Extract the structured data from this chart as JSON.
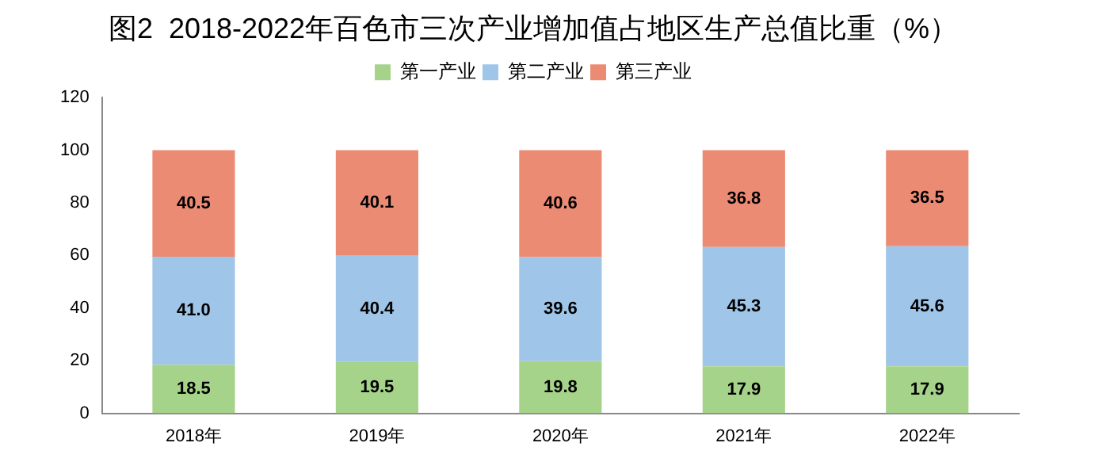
{
  "chart_data": {
    "type": "bar",
    "title": "图2  2018-2022年百色市三次产业增加值占地区生产总值比重（%）",
    "categories": [
      "2018年",
      "2019年",
      "2020年",
      "2021年",
      "2022年"
    ],
    "stacked": true,
    "series": [
      {
        "name": "第一产业",
        "color": "#a6d38a",
        "values": [
          18.5,
          19.5,
          19.8,
          17.9,
          17.9
        ],
        "value_labels": [
          "18.5",
          "19.5",
          "19.8",
          "17.9",
          "17.9"
        ]
      },
      {
        "name": "第二产业",
        "color": "#9fc5e8",
        "values": [
          41.0,
          40.4,
          39.6,
          45.3,
          45.6
        ],
        "value_labels": [
          "41.0",
          "40.4",
          "39.6",
          "45.3",
          "45.6"
        ]
      },
      {
        "name": "第三产业",
        "color": "#ec8b74",
        "values": [
          40.5,
          40.1,
          40.6,
          36.8,
          36.5
        ],
        "value_labels": [
          "40.5",
          "40.1",
          "40.6",
          "36.8",
          "36.5"
        ]
      }
    ],
    "ylim": [
      0,
      120
    ],
    "yticks": [
      0,
      20,
      40,
      60,
      80,
      100,
      120
    ],
    "grid": false,
    "legend": "top"
  }
}
